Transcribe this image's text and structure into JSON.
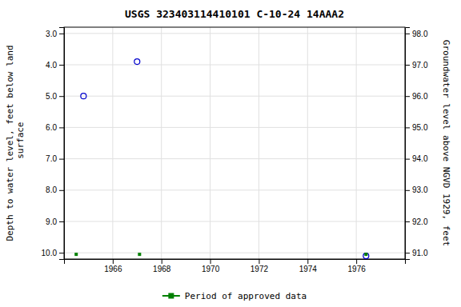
{
  "chart_data": {
    "type": "scatter",
    "title": "USGS 323403114410101 C-10-24 14AAA2",
    "y_label": "Depth to water level, feet below land\n surface",
    "y2_label": "Groundwater level above NGVD 1929, feet",
    "xlim": [
      1964.0,
      1978.0
    ],
    "xticks": [
      1966,
      1968,
      1970,
      1972,
      1974,
      1976
    ],
    "ylim": [
      10.2,
      2.8
    ],
    "yticks": [
      {
        "value": 3.0,
        "label": "3.0"
      },
      {
        "value": 4.0,
        "label": "4.0"
      },
      {
        "value": 5.0,
        "label": "5.0"
      },
      {
        "value": 6.0,
        "label": "6.0"
      },
      {
        "value": 7.0,
        "label": "7.0"
      },
      {
        "value": 8.0,
        "label": "8.0"
      },
      {
        "value": 9.0,
        "label": "9.0"
      },
      {
        "value": 10.0,
        "label": "10.0"
      }
    ],
    "y2lim": [
      90.8,
      98.2
    ],
    "y2ticks": [
      {
        "value": 98.0,
        "label": "98.0"
      },
      {
        "value": 97.0,
        "label": "97.0"
      },
      {
        "value": 96.0,
        "label": "96.0"
      },
      {
        "value": 95.0,
        "label": "95.0"
      },
      {
        "value": 94.0,
        "label": "94.0"
      },
      {
        "value": 93.0,
        "label": "93.0"
      },
      {
        "value": 92.0,
        "label": "92.0"
      },
      {
        "value": 91.0,
        "label": "91.0"
      }
    ],
    "grid": true,
    "legend": "bottom",
    "series": [
      {
        "color": "#0000cc",
        "marker": "circle",
        "x": [
          1964.8,
          1967.0,
          1976.4
        ],
        "values": [
          5.0,
          3.9,
          10.1
        ]
      },
      {
        "name": "Period of approved data",
        "color": "#008000",
        "marker": "square",
        "x": [
          1964.5,
          1967.1,
          1976.4
        ],
        "values": [
          10.05,
          10.05,
          10.05
        ]
      }
    ]
  }
}
